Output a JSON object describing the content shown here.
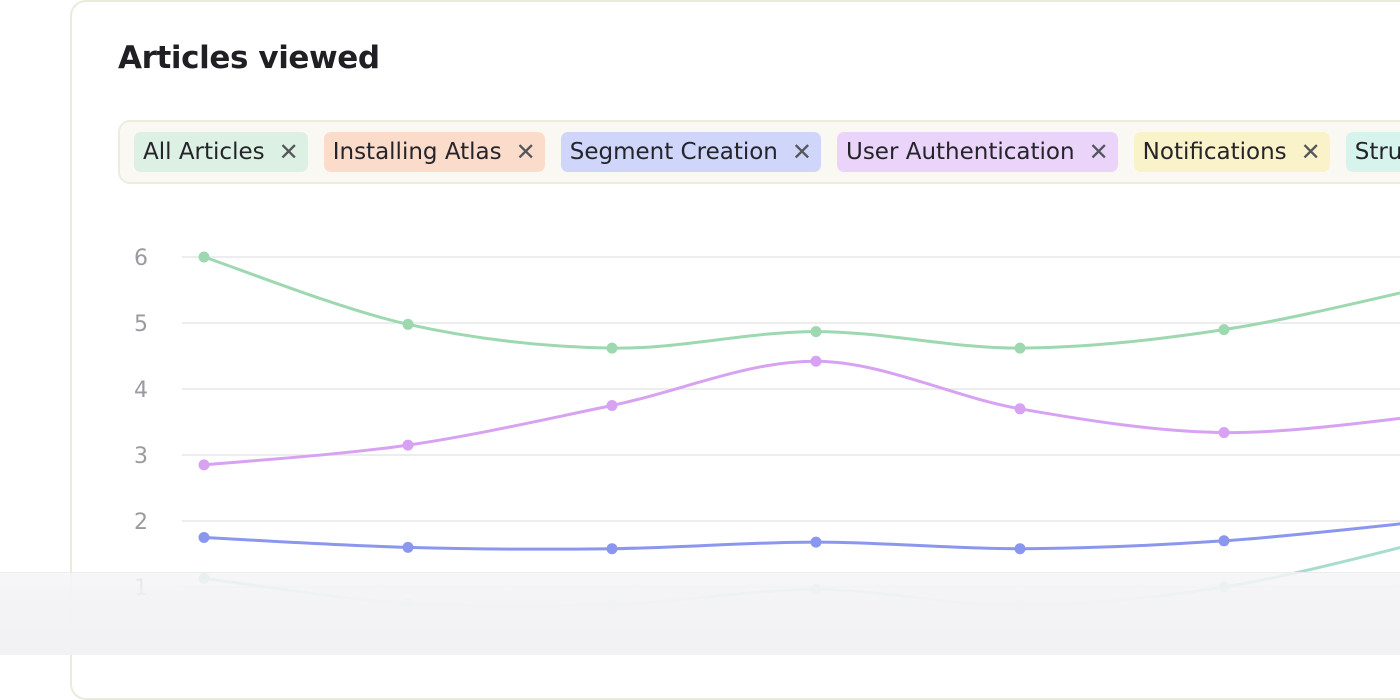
{
  "header": {
    "title": "Articles viewed"
  },
  "filters": [
    {
      "label": "All Articles",
      "bg": "#dcf0e3"
    },
    {
      "label": "Installing Atlas",
      "bg": "#fbdccb"
    },
    {
      "label": "Segment Creation",
      "bg": "#cfd6fa"
    },
    {
      "label": "User Authentication",
      "bg": "#ebd4fa"
    },
    {
      "label": "Notifications",
      "bg": "#faf3c9"
    },
    {
      "label": "Struc",
      "bg": "#d6f3ec"
    }
  ],
  "chart_data": {
    "type": "line",
    "x": [
      1,
      2,
      3,
      4,
      5,
      6,
      7
    ],
    "ylim": [
      0,
      6
    ],
    "yticks": [
      1,
      2,
      3,
      4,
      5,
      6
    ],
    "grid": true,
    "series": [
      {
        "color": "#9dd8b1",
        "values": [
          6.0,
          4.98,
          4.62,
          4.87,
          4.62,
          4.9,
          5.55
        ]
      },
      {
        "color": "#d8a2f2",
        "values": [
          2.85,
          3.15,
          3.75,
          4.42,
          3.7,
          3.34,
          3.6
        ]
      },
      {
        "color": "#8b97ee",
        "values": [
          1.75,
          1.6,
          1.58,
          1.68,
          1.58,
          1.7,
          2.0
        ]
      },
      {
        "color": "#a8dccd",
        "values": [
          1.13,
          0.75,
          0.73,
          0.96,
          0.72,
          1.0,
          1.7
        ]
      }
    ]
  }
}
